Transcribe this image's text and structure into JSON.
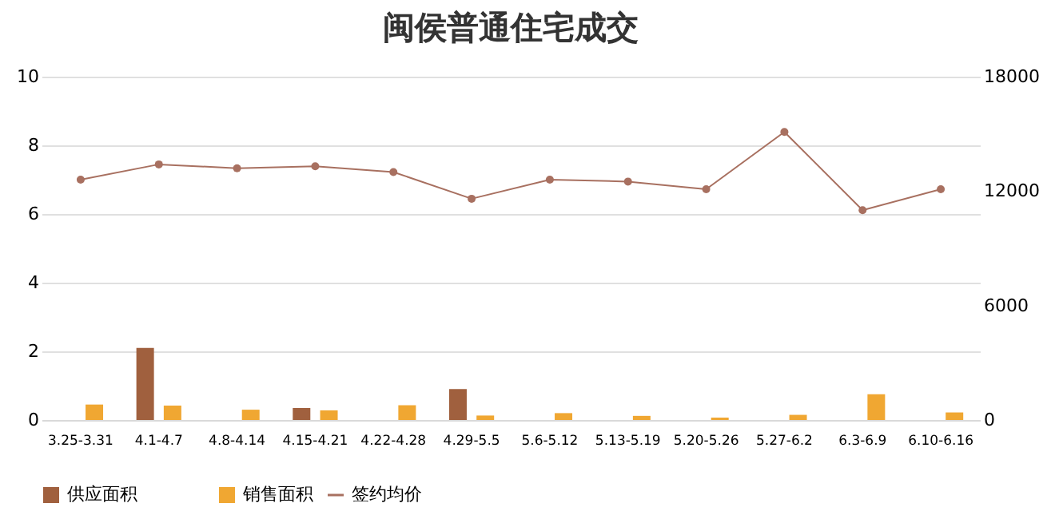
{
  "chart_data": {
    "type": "bar",
    "title": "闽侯普通住宅成交",
    "categories": [
      "3.25-3.31",
      "4.1-4.7",
      "4.8-4.14",
      "4.15-4.21",
      "4.22-4.28",
      "4.29-5.5",
      "5.6-5.12",
      "5.13-5.19",
      "5.20-5.26",
      "5.27-6.2",
      "6.3-6.9",
      "6.10-6.16"
    ],
    "series": [
      {
        "name": "供应面积",
        "color": "#a0603e",
        "values": [
          0,
          2.1,
          0,
          0.35,
          0,
          0.9,
          0,
          0,
          0,
          0,
          0,
          0
        ]
      },
      {
        "name": "销售面积",
        "color": "#f0a732",
        "values": [
          0.45,
          0.42,
          0.3,
          0.28,
          0.43,
          0.13,
          0.2,
          0.12,
          0.07,
          0.15,
          0.75,
          0.22
        ]
      },
      {
        "name": "签约均价",
        "color": "#a87060",
        "type": "line",
        "axis": "y2",
        "marker": "circle",
        "values": [
          12600,
          13400,
          13200,
          13300,
          13000,
          11600,
          12600,
          12500,
          12100,
          15100,
          11000,
          12100
        ]
      }
    ],
    "ylim": [
      0,
      10
    ],
    "yticks": [
      0,
      2,
      4,
      6,
      8,
      10
    ],
    "y2lim": [
      0,
      18000
    ],
    "y2ticks": [
      0,
      6000,
      12000,
      18000
    ],
    "grid": "y",
    "legend": "bottom"
  }
}
